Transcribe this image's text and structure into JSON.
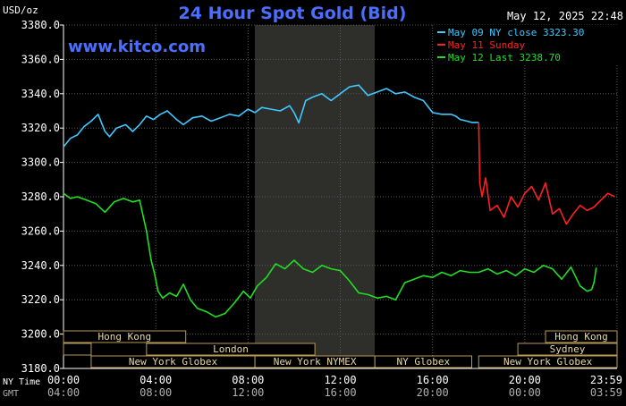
{
  "header": {
    "unit": "USD/oz",
    "title": "24 Hour Spot Gold (Bid)",
    "timestamp": "May 12, 2025 22:48",
    "watermark": "www.kitco.com"
  },
  "row_labels": {
    "ny_time": "NY Time",
    "gmt": "GMT"
  },
  "colors": {
    "background": "#000000",
    "title": "#4a6fff",
    "grid": "#5a5a5a",
    "session_shade": "#2e2e2a",
    "market_bar_fill": "#000000",
    "market_bar_border": "#b89a54",
    "market_bar_text": "#e8d8a8",
    "axis_text": "#ffffff",
    "gmt_text": "#b0b0b0"
  },
  "markets": {
    "row1": [
      "Hong Kong",
      "Hong Kong"
    ],
    "row2": [
      "London",
      "Sydney"
    ],
    "row3": [
      "New York Globex",
      "New York NYMEX",
      "NY Globex",
      "New York Globex"
    ]
  },
  "chart_data": {
    "type": "line",
    "ylim": [
      3180,
      3380
    ],
    "yticks": [
      "3380.0",
      "3360.0",
      "3340.0",
      "3320.0",
      "3300.0",
      "3280.0",
      "3260.0",
      "3240.0",
      "3220.0",
      "3200.0",
      "3180.0"
    ],
    "xrange_hours": [
      0,
      24
    ],
    "xticks_ny": [
      "00:00",
      "04:00",
      "08:00",
      "12:00",
      "16:00",
      "20:00",
      "23:59"
    ],
    "xticks_gmt": [
      "04:00",
      "08:00",
      "12:00",
      "16:00",
      "20:00",
      "00:00",
      "03:59"
    ],
    "legend": [
      {
        "name": "May 09 NY close 3323.30",
        "color": "#40c8ff"
      },
      {
        "name": "May 11 Sunday",
        "color": "#ff2020"
      },
      {
        "name": "May 12 Last 3238.70",
        "color": "#20e020"
      }
    ],
    "series": [
      {
        "name": "May 09 NY close 3323.30",
        "color": "#40c8ff",
        "x": [
          0,
          0.3,
          0.6,
          0.9,
          1.2,
          1.5,
          1.8,
          2.0,
          2.3,
          2.7,
          3.0,
          3.3,
          3.6,
          3.9,
          4.2,
          4.5,
          4.9,
          5.2,
          5.6,
          6.0,
          6.4,
          6.8,
          7.2,
          7.6,
          8.0,
          8.3,
          8.6,
          9.0,
          9.4,
          9.8,
          10.0,
          10.2,
          10.5,
          10.8,
          11.2,
          11.6,
          12.0,
          12.4,
          12.8,
          13.2,
          13.6,
          14.0,
          14.4,
          14.8,
          15.2,
          15.6,
          16.0,
          16.4,
          16.8,
          17.0,
          17.2,
          17.5,
          17.7,
          18.0
        ],
        "values": [
          3309,
          3314,
          3316,
          3321,
          3324,
          3328,
          3318,
          3315,
          3320,
          3322,
          3318,
          3322,
          3327,
          3325,
          3328,
          3330,
          3325,
          3322,
          3326,
          3327,
          3324,
          3326,
          3328,
          3327,
          3331,
          3329,
          3332,
          3331,
          3330,
          3333,
          3329,
          3323,
          3336,
          3338,
          3340,
          3336,
          3340,
          3344,
          3345,
          3339,
          3341,
          3343,
          3340,
          3341,
          3338,
          3336,
          3329,
          3328,
          3328,
          3327,
          3325,
          3324,
          3323.3,
          3323.3
        ]
      },
      {
        "name": "May 11 Sunday",
        "color": "#ff2020",
        "x": [
          18.0,
          18.05,
          18.15,
          18.3,
          18.5,
          18.8,
          19.1,
          19.4,
          19.7,
          20.0,
          20.3,
          20.6,
          20.9,
          21.2,
          21.5,
          21.8,
          22.1,
          22.4,
          22.7,
          23.0,
          23.3,
          23.6,
          23.9
        ],
        "values": [
          3323.3,
          3288,
          3280,
          3291,
          3272,
          3275,
          3268,
          3280,
          3274,
          3282,
          3286,
          3278,
          3288,
          3270,
          3273,
          3264,
          3270,
          3275,
          3272,
          3274,
          3278,
          3282,
          3280
        ]
      },
      {
        "name": "May 12 Last 3238.70",
        "color": "#20e020",
        "x": [
          0,
          0.3,
          0.6,
          1.0,
          1.4,
          1.8,
          2.2,
          2.6,
          3.0,
          3.3,
          3.6,
          3.8,
          3.95,
          4.1,
          4.3,
          4.6,
          4.9,
          5.2,
          5.5,
          5.8,
          6.2,
          6.6,
          7.0,
          7.4,
          7.8,
          8.1,
          8.4,
          8.8,
          9.2,
          9.6,
          10.0,
          10.4,
          10.8,
          11.2,
          11.6,
          12.0,
          12.4,
          12.8,
          13.2,
          13.6,
          14.0,
          14.4,
          14.8,
          15.2,
          15.6,
          16.0,
          16.4,
          16.8,
          17.2,
          17.6,
          18.0,
          18.4,
          18.8,
          19.2,
          19.6,
          20.0,
          20.4,
          20.8,
          21.2,
          21.6,
          22.0,
          22.4,
          22.7,
          22.9,
          23.0,
          23.1
        ],
        "values": [
          3282,
          3279,
          3280,
          3278,
          3276,
          3271,
          3277,
          3279,
          3277,
          3278,
          3260,
          3243,
          3235,
          3225,
          3221,
          3224,
          3222,
          3229,
          3220,
          3215,
          3213,
          3210,
          3212,
          3218,
          3225,
          3221,
          3228,
          3233,
          3241,
          3238,
          3243,
          3238,
          3236,
          3240,
          3238,
          3237,
          3231,
          3224,
          3223,
          3221,
          3222,
          3220,
          3230,
          3232,
          3234,
          3233,
          3236,
          3234,
          3237,
          3236,
          3236,
          3238,
          3235,
          3237,
          3234,
          3238,
          3236,
          3240,
          3238,
          3232,
          3239,
          3228,
          3225,
          3226,
          3230,
          3238.7
        ]
      }
    ]
  }
}
